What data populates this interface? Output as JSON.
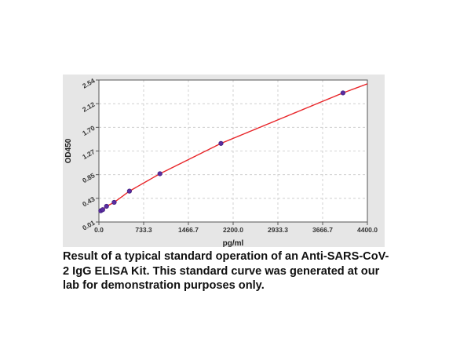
{
  "chart_data": {
    "type": "scatter",
    "title": "",
    "xlabel": "pg/ml",
    "ylabel": "OD450",
    "xlim": [
      0.0,
      4400.0
    ],
    "ylim": [
      0.01,
      2.54
    ],
    "x_ticks": [
      "0.0",
      "733.3",
      "1466.7",
      "2200.0",
      "2933.3",
      "3666.7",
      "4400.0"
    ],
    "y_ticks": [
      "0.01",
      "0.43",
      "0.85",
      "1.27",
      "1.70",
      "2.12",
      "2.54"
    ],
    "grid": "dashed",
    "legend": "none",
    "series": [
      {
        "type": "scatter",
        "color": "#5a2ca0",
        "points": [
          {
            "x": 31.25,
            "y": 0.21
          },
          {
            "x": 62.5,
            "y": 0.23
          },
          {
            "x": 125,
            "y": 0.29
          },
          {
            "x": 250,
            "y": 0.36
          },
          {
            "x": 500,
            "y": 0.56
          },
          {
            "x": 1000,
            "y": 0.87
          },
          {
            "x": 2000,
            "y": 1.41
          },
          {
            "x": 4000,
            "y": 2.31
          }
        ]
      },
      {
        "type": "fit-curve",
        "color": "#e8262a",
        "x_range": [
          0,
          4400
        ]
      }
    ]
  },
  "caption": "Result of a typical standard operation of an Anti-SARS-CoV-2 IgG ELISA Kit. This standard curve was generated at our lab for demonstration purposes only."
}
